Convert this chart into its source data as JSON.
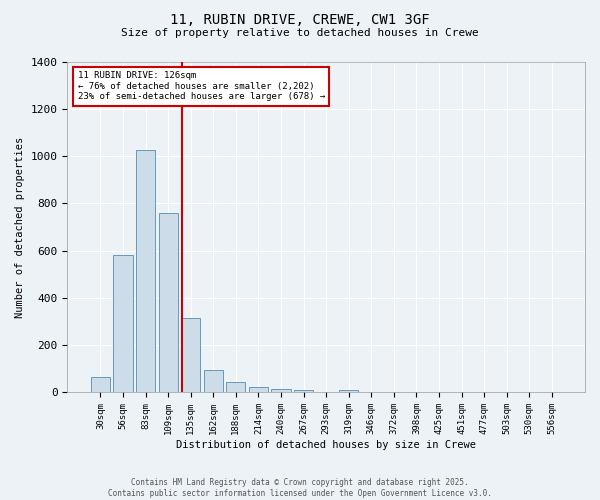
{
  "title1": "11, RUBIN DRIVE, CREWE, CW1 3GF",
  "title2": "Size of property relative to detached houses in Crewe",
  "xlabel": "Distribution of detached houses by size in Crewe",
  "ylabel": "Number of detached properties",
  "bar_labels": [
    "30sqm",
    "56sqm",
    "83sqm",
    "109sqm",
    "135sqm",
    "162sqm",
    "188sqm",
    "214sqm",
    "240sqm",
    "267sqm",
    "293sqm",
    "319sqm",
    "346sqm",
    "372sqm",
    "398sqm",
    "425sqm",
    "451sqm",
    "477sqm",
    "503sqm",
    "530sqm",
    "556sqm"
  ],
  "bar_values": [
    65,
    580,
    1025,
    760,
    315,
    95,
    45,
    22,
    13,
    10,
    0,
    10,
    0,
    0,
    0,
    0,
    0,
    0,
    0,
    0,
    0
  ],
  "bar_color": "#ccdce8",
  "bar_edge_color": "#6699bb",
  "red_line_x": 3.62,
  "annotation_title": "11 RUBIN DRIVE: 126sqm",
  "annotation_line1": "← 76% of detached houses are smaller (2,202)",
  "annotation_line2": "23% of semi-detached houses are larger (678) →",
  "annotation_box_color": "#ffffff",
  "annotation_box_edge": "#cc0000",
  "red_line_color": "#cc0000",
  "ylim": [
    0,
    1400
  ],
  "yticks": [
    0,
    200,
    400,
    600,
    800,
    1000,
    1200,
    1400
  ],
  "background_color": "#edf2f7",
  "grid_color": "#ffffff",
  "footer1": "Contains HM Land Registry data © Crown copyright and database right 2025.",
  "footer2": "Contains public sector information licensed under the Open Government Licence v3.0."
}
